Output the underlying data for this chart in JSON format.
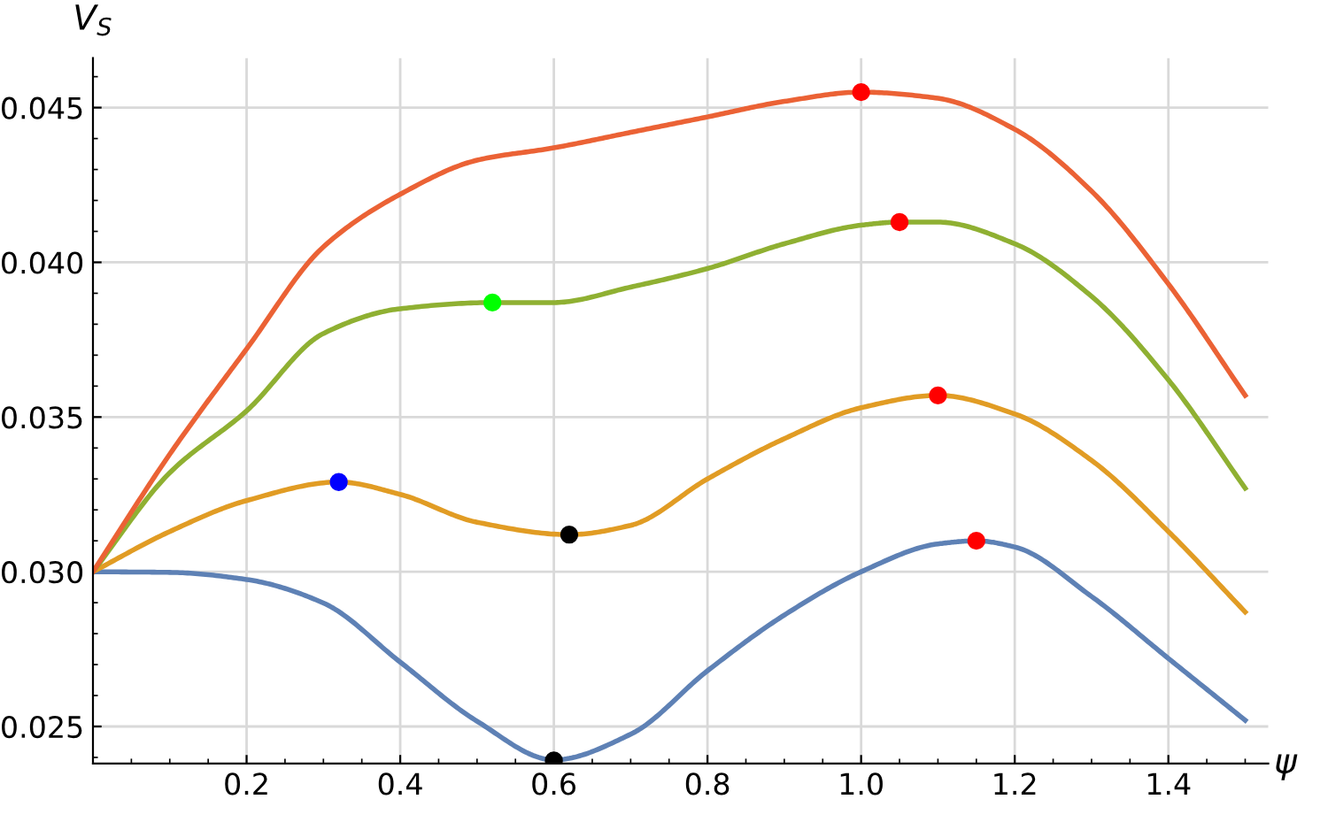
{
  "chart_data": {
    "type": "line",
    "xlabel": "ψ",
    "ylabel": "V$_{S}$",
    "xlim": [
      0,
      1.53
    ],
    "ylim": [
      0.0238,
      0.0466
    ],
    "xticks": [
      0.2,
      0.4,
      0.6,
      0.8,
      {
        "value": 1.0,
        "label": "1.0"
      },
      1.2,
      1.4
    ],
    "yticks": [
      0.025,
      {
        "value": 0.03,
        "label": "0.030"
      },
      0.035,
      {
        "value": 0.04,
        "label": "0.040"
      },
      0.045
    ],
    "grid": true,
    "line_style": "solid",
    "series": [
      {
        "color": "#5e81b5",
        "x": [
          0,
          0.1,
          0.2,
          0.3,
          0.4,
          0.5,
          0.6,
          0.7,
          0.8,
          0.9,
          1.0,
          1.1,
          1.15,
          1.2,
          1.3,
          1.4,
          1.5
        ],
        "values": [
          0.03,
          0.02998,
          0.02975,
          0.02899,
          0.02708,
          0.02517,
          0.02392,
          0.02475,
          0.0268,
          0.0286,
          0.03,
          0.0309,
          0.031,
          0.0308,
          0.0292,
          0.0272,
          0.0252
        ]
      },
      {
        "color": "#e19c24",
        "x": [
          0,
          0.1,
          0.2,
          0.32,
          0.4,
          0.5,
          0.62,
          0.7,
          0.8,
          0.9,
          1.0,
          1.1,
          1.2,
          1.3,
          1.4,
          1.5
        ],
        "values": [
          0.03,
          0.0313,
          0.0323,
          0.0329,
          0.0325,
          0.0316,
          0.0312,
          0.0315,
          0.033,
          0.0343,
          0.0353,
          0.0357,
          0.0351,
          0.0336,
          0.0313,
          0.0287
        ]
      },
      {
        "color": "#8fb032",
        "x": [
          0,
          0.1,
          0.2,
          0.3,
          0.4,
          0.52,
          0.6,
          0.7,
          0.8,
          0.9,
          1.0,
          1.05,
          1.1,
          1.2,
          1.3,
          1.4,
          1.5
        ],
        "values": [
          0.03,
          0.0332,
          0.0352,
          0.0377,
          0.0385,
          0.0387,
          0.0387,
          0.0392,
          0.0398,
          0.0406,
          0.0412,
          0.0413,
          0.0413,
          0.0406,
          0.0389,
          0.0362,
          0.0327
        ]
      },
      {
        "color": "#eb6235",
        "x": [
          0,
          0.1,
          0.2,
          0.3,
          0.4,
          0.5,
          0.6,
          0.7,
          0.8,
          0.9,
          1.0,
          1.1,
          1.2,
          1.3,
          1.4,
          1.5
        ],
        "values": [
          0.03,
          0.0338,
          0.0372,
          0.0405,
          0.0422,
          0.0433,
          0.0437,
          0.0442,
          0.0447,
          0.0452,
          0.0455,
          0.0453,
          0.0443,
          0.0423,
          0.0393,
          0.0357
        ]
      },
      {
        "type": "scatter",
        "marker": "circle",
        "color": "#ff0000",
        "x": [
          1.0,
          1.05,
          1.1,
          1.15
        ],
        "values": [
          0.0455,
          0.0413,
          0.0357,
          0.031
        ]
      },
      {
        "type": "scatter",
        "marker": "circle",
        "color": "#0000ff",
        "x": [
          0.32
        ],
        "values": [
          0.0329
        ]
      },
      {
        "type": "scatter",
        "marker": "circle",
        "color": "#000000",
        "x": [
          0.6,
          0.62
        ],
        "values": [
          0.0239,
          0.0312
        ]
      },
      {
        "type": "scatter",
        "marker": "circle",
        "color": "#00ff00",
        "x": [
          0.52
        ],
        "values": [
          0.0387
        ]
      }
    ]
  }
}
